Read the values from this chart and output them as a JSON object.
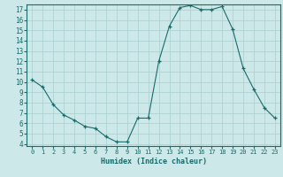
{
  "x": [
    0,
    1,
    2,
    3,
    4,
    5,
    6,
    7,
    8,
    9,
    10,
    11,
    12,
    13,
    14,
    15,
    16,
    17,
    18,
    19,
    20,
    21,
    22,
    23
  ],
  "y": [
    10.2,
    9.5,
    7.8,
    6.8,
    6.3,
    5.7,
    5.5,
    4.7,
    4.2,
    4.2,
    6.5,
    6.5,
    12.0,
    15.4,
    17.2,
    17.4,
    17.0,
    17.0,
    17.3,
    15.1,
    11.3,
    9.3,
    7.5,
    6.5
  ],
  "xlabel": "Humidex (Indice chaleur)",
  "ylim": [
    3.8,
    17.5
  ],
  "xlim": [
    -0.5,
    23.5
  ],
  "bg_color": "#cce8e8",
  "line_color": "#1a6b6b",
  "grid_color": "#aacece",
  "yticks": [
    4,
    5,
    6,
    7,
    8,
    9,
    10,
    11,
    12,
    13,
    14,
    15,
    16,
    17
  ],
  "xticks": [
    0,
    1,
    2,
    3,
    4,
    5,
    6,
    7,
    8,
    9,
    10,
    11,
    12,
    13,
    14,
    15,
    16,
    17,
    18,
    19,
    20,
    21,
    22,
    23
  ],
  "xlabel_fontsize": 6.0,
  "tick_fontsize": 5.0,
  "ytick_fontsize": 5.5
}
